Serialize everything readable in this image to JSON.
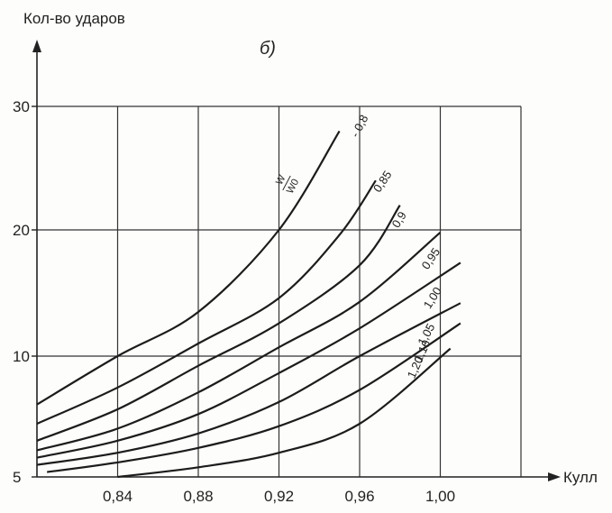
{
  "chart_data": {
    "type": "line",
    "title": "б)",
    "xlabel": "Кулл",
    "ylabel": "Кол-во ударов",
    "x_ticks": [
      "0,84",
      "0,88",
      "0,92",
      "0,96",
      "1,00"
    ],
    "x_tick_values": [
      0.84,
      0.88,
      0.92,
      0.96,
      1.0
    ],
    "y_ticks": [
      "5",
      "10",
      "20",
      "30"
    ],
    "y_tick_values": [
      5,
      10,
      20,
      30
    ],
    "xlim": [
      0.8,
      1.04
    ],
    "ylim": [
      5,
      30
    ],
    "grid": true,
    "curve_label_fraction": {
      "numerator": "W",
      "denominator": "W0"
    },
    "series": [
      {
        "name": "0,8",
        "x": [
          0.8,
          0.84,
          0.88,
          0.92,
          0.95
        ],
        "y": [
          8.0,
          10.0,
          13.5,
          20.0,
          28.0
        ]
      },
      {
        "name": "0,85",
        "x": [
          0.8,
          0.84,
          0.88,
          0.92,
          0.95,
          0.968
        ],
        "y": [
          7.2,
          8.7,
          11.0,
          14.6,
          19.6,
          24.0
        ]
      },
      {
        "name": "0,9",
        "x": [
          0.8,
          0.84,
          0.88,
          0.92,
          0.96,
          0.98
        ],
        "y": [
          6.5,
          7.8,
          9.6,
          12.6,
          17.2,
          22.0
        ]
      },
      {
        "name": "0,95",
        "x": [
          0.8,
          0.84,
          0.88,
          0.92,
          0.96,
          1.0
        ],
        "y": [
          6.1,
          7.0,
          8.5,
          10.7,
          14.3,
          19.8
        ]
      },
      {
        "name": "1,00",
        "x": [
          0.8,
          0.84,
          0.88,
          0.92,
          0.96,
          1.01
        ],
        "y": [
          5.8,
          6.5,
          7.6,
          9.3,
          12.2,
          17.4
        ]
      },
      {
        "name": "1,05",
        "x": [
          0.8,
          0.84,
          0.88,
          0.92,
          0.96,
          1.01
        ],
        "y": [
          5.5,
          6.0,
          6.8,
          8.1,
          10.0,
          14.2
        ]
      },
      {
        "name": "1,10",
        "x": [
          0.805,
          0.84,
          0.88,
          0.92,
          0.96,
          1.01
        ],
        "y": [
          5.2,
          5.6,
          6.2,
          7.1,
          8.6,
          12.6
        ]
      },
      {
        "name": "1,20",
        "x": [
          0.84,
          0.88,
          0.92,
          0.96,
          1.005
        ],
        "y": [
          5.0,
          5.4,
          6.0,
          7.2,
          10.6
        ]
      }
    ]
  }
}
